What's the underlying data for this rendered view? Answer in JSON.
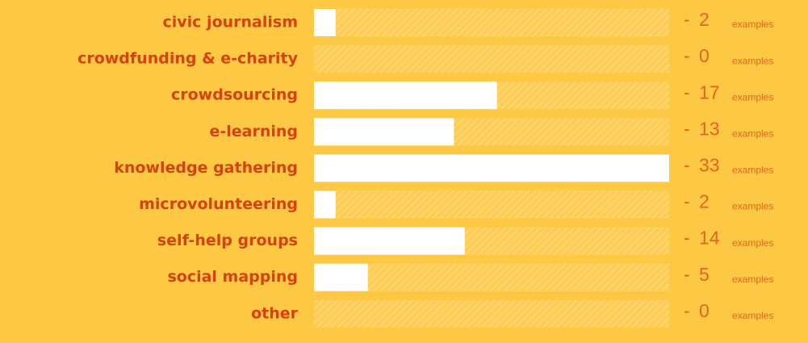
{
  "chart_data": {
    "type": "bar",
    "orientation": "horizontal",
    "categories": [
      "civic journalism",
      "crowdfunding & e-charity",
      "crowdsourcing",
      "e-learning",
      "knowledge gathering",
      "microvolunteering",
      "self-help groups",
      "social mapping",
      "other"
    ],
    "values": [
      2,
      0,
      17,
      13,
      33,
      2,
      14,
      5,
      0
    ],
    "separator": "-",
    "unit_label": "examples",
    "color": "#ffffff",
    "xlim": [
      0,
      33
    ]
  }
}
